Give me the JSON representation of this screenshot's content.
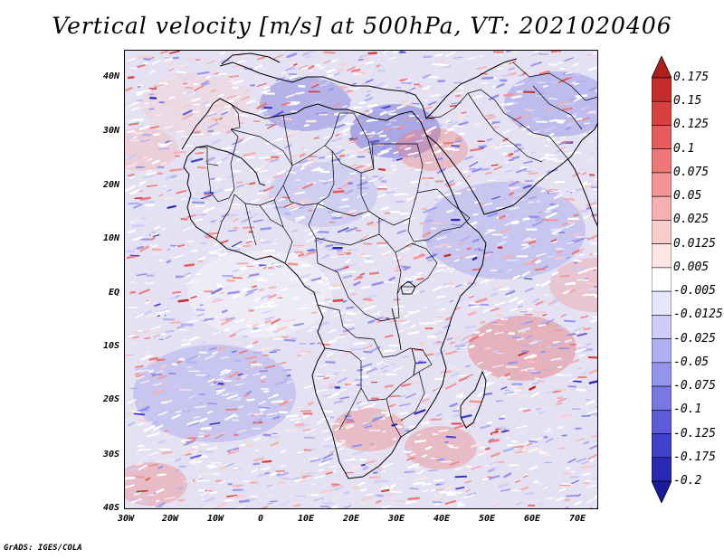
{
  "title": "Vertical velocity [m/s] at 500hPa, VT: 2021020406",
  "credit": "GrADS: IGES/COLA",
  "axes": {
    "lat_labels": [
      "40N",
      "30N",
      "20N",
      "10N",
      "EQ",
      "10S",
      "20S",
      "30S",
      "40S"
    ],
    "lon_labels": [
      "30W",
      "20W",
      "10W",
      "0",
      "10E",
      "20E",
      "30E",
      "40E",
      "50E",
      "60E",
      "70E"
    ],
    "lon_range": [
      -30,
      75
    ],
    "lat_range": [
      -40,
      45
    ]
  },
  "legend": {
    "labels": [
      "0.175",
      "0.15",
      "0.125",
      "0.1",
      "0.075",
      "0.05",
      "0.025",
      "0.0125",
      "0.005",
      "-0.005",
      "-0.0125",
      "-0.025",
      "-0.05",
      "-0.075",
      "-0.1",
      "-0.125",
      "-0.175",
      "-0.2"
    ],
    "colors": [
      "#b01e1e",
      "#c72c2c",
      "#d94141",
      "#e65c5c",
      "#ed7878",
      "#f29494",
      "#f5b0b0",
      "#f9cccc",
      "#fce6e6",
      "#ffffff",
      "#e6e6fb",
      "#ccccf6",
      "#b0b0f0",
      "#9494ea",
      "#7878e2",
      "#5c5cd8",
      "#4040cc",
      "#2828b4",
      "#1a1a9c"
    ],
    "top_arrow_color": "#b01e1e",
    "bottom_arrow_color": "#1a1a9c"
  }
}
